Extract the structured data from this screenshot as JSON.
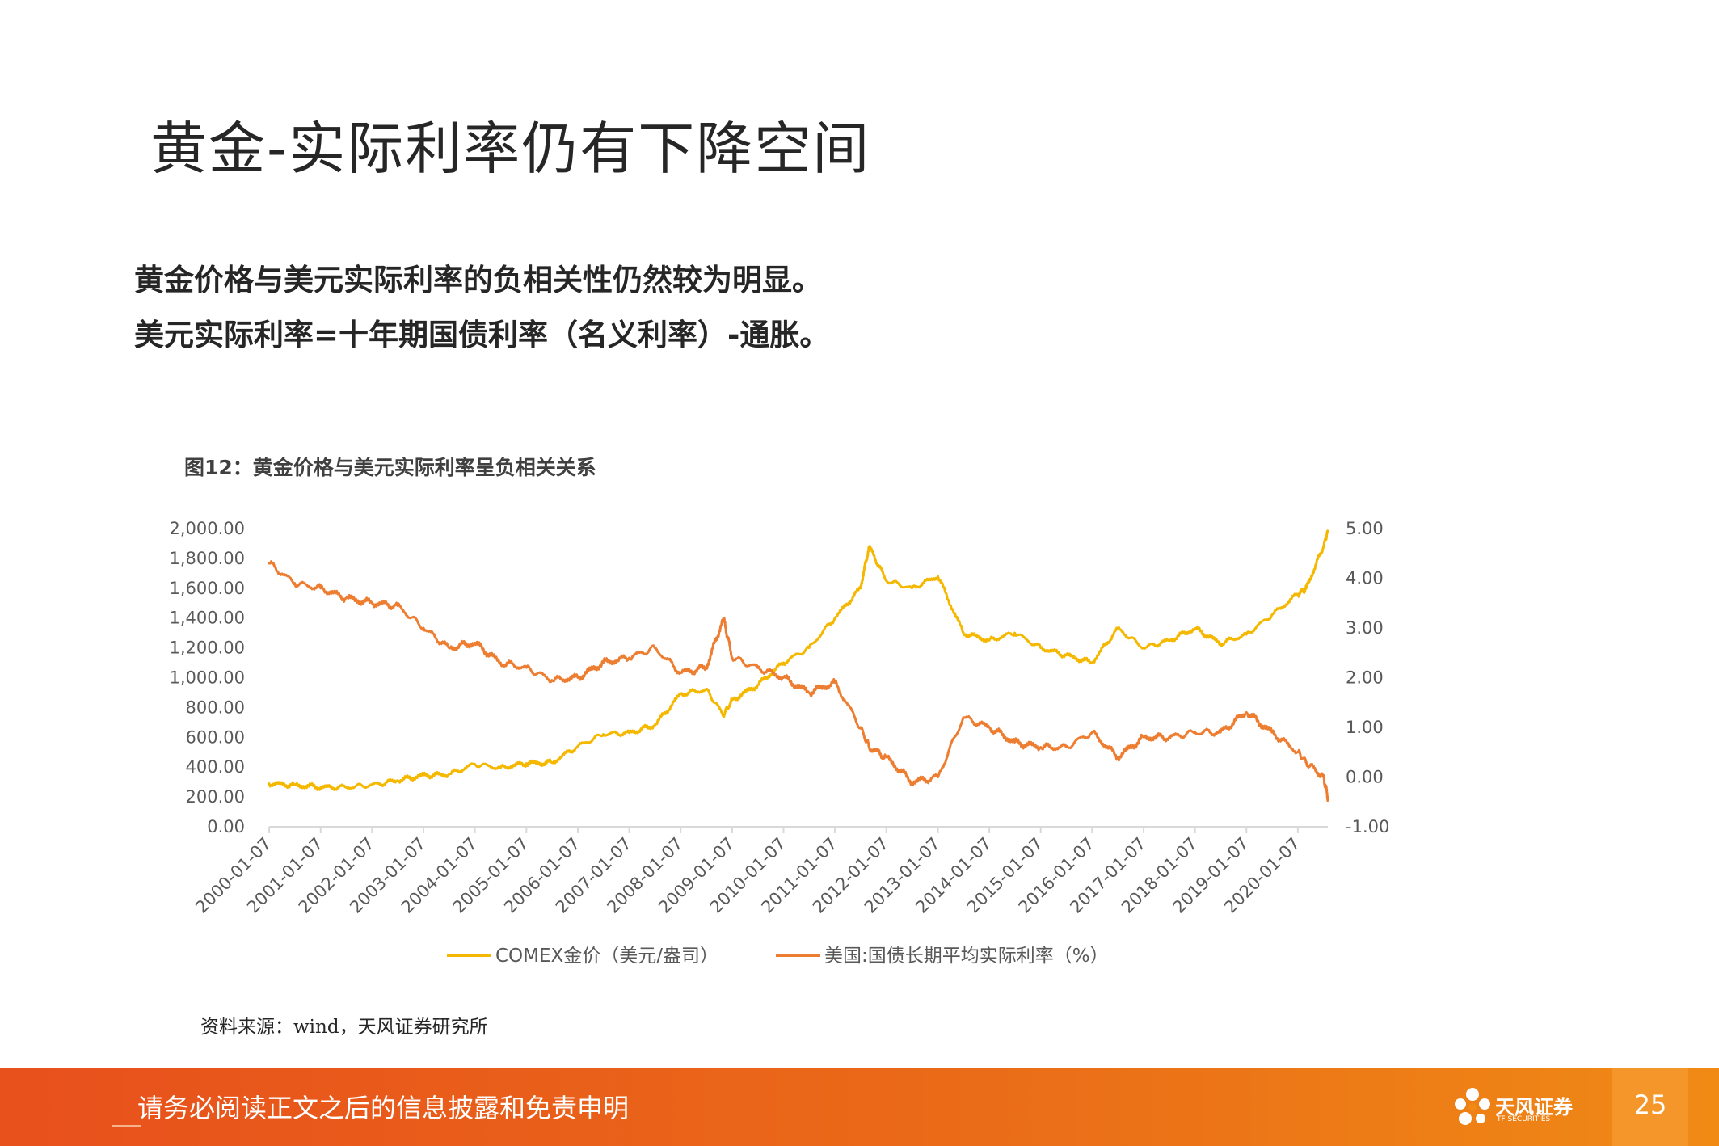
{
  "slide": {
    "title": "黄金-实际利率仍有下降空间",
    "points": [
      "黄金价格与美元实际利率的负相关性仍然较为明显。",
      "美元实际利率=十年期国债利率（名义利率）-通胀。"
    ],
    "figure_title": "图12：黄金价格与美元实际利率呈负相关关系",
    "source": "资料来源：wind，天风证券研究所"
  },
  "footer": {
    "disclaimer": "请务必阅读正文之后的信息披露和免责申明",
    "logo_text": "天风证券",
    "logo_subtext": "TF SECURITIES",
    "page_number": "25",
    "colors": {
      "bar": "#e8501c",
      "tab": "#f5962a"
    }
  },
  "chart_data": {
    "type": "line",
    "title": "",
    "x": [
      "2000-01-07",
      "2000-07-07",
      "2001-01-07",
      "2001-07-07",
      "2002-01-07",
      "2002-07-07",
      "2003-01-07",
      "2003-07-07",
      "2004-01-07",
      "2004-07-07",
      "2005-01-07",
      "2005-07-07",
      "2006-01-07",
      "2006-07-07",
      "2007-01-07",
      "2007-07-07",
      "2008-01-07",
      "2008-07-07",
      "2008-11-07",
      "2009-01-07",
      "2009-07-07",
      "2010-01-07",
      "2010-07-07",
      "2011-01-07",
      "2011-07-07",
      "2011-09-07",
      "2012-01-07",
      "2012-07-07",
      "2013-01-07",
      "2013-07-07",
      "2014-01-07",
      "2014-07-07",
      "2015-01-07",
      "2015-07-07",
      "2016-01-07",
      "2016-07-07",
      "2017-01-07",
      "2017-07-07",
      "2018-01-07",
      "2018-07-07",
      "2019-01-07",
      "2019-07-07",
      "2020-01-07",
      "2020-03-07",
      "2020-07-07",
      "2020-08-07"
    ],
    "x_ticks": [
      "2000-01-07",
      "2001-01-07",
      "2002-01-07",
      "2003-01-07",
      "2004-01-07",
      "2005-01-07",
      "2006-01-07",
      "2007-01-07",
      "2008-01-07",
      "2009-01-07",
      "2010-01-07",
      "2011-01-07",
      "2012-01-07",
      "2013-01-07",
      "2014-01-07",
      "2015-01-07",
      "2016-01-07",
      "2017-01-07",
      "2018-01-07",
      "2019-01-07",
      "2020-01-07"
    ],
    "y_left": {
      "ylim": [
        0,
        2000
      ],
      "ticks": [
        "0.00",
        "200.00",
        "400.00",
        "600.00",
        "800.00",
        "1,000.00",
        "1,200.00",
        "1,400.00",
        "1,600.00",
        "1,800.00",
        "2,000.00"
      ]
    },
    "y_right": {
      "ylim": [
        -1,
        5
      ],
      "ticks": [
        "-1.00",
        "0.00",
        "1.00",
        "2.00",
        "3.00",
        "4.00",
        "5.00"
      ]
    },
    "series": [
      {
        "name": "COMEX金价（美元/盎司）",
        "axis": "left",
        "color": "#f5b800",
        "values": [
          290,
          280,
          265,
          265,
          280,
          310,
          345,
          350,
          420,
          395,
          425,
          430,
          540,
          620,
          630,
          680,
          890,
          920,
          750,
          850,
          950,
          1100,
          1200,
          1400,
          1600,
          1880,
          1650,
          1600,
          1680,
          1300,
          1250,
          1300,
          1200,
          1150,
          1100,
          1330,
          1200,
          1250,
          1330,
          1230,
          1290,
          1420,
          1560,
          1600,
          1880,
          1980
        ]
      },
      {
        "name": "美国:国债长期平均实际利率（%）",
        "axis": "right",
        "color": "#ed7d31",
        "values": [
          4.3,
          3.9,
          3.8,
          3.6,
          3.5,
          3.45,
          3.0,
          2.6,
          2.7,
          2.3,
          2.2,
          1.95,
          2.0,
          2.3,
          2.4,
          2.6,
          2.1,
          2.2,
          3.2,
          2.4,
          2.2,
          2.0,
          1.7,
          1.9,
          1.0,
          0.6,
          0.4,
          -0.1,
          0.0,
          1.2,
          1.0,
          0.7,
          0.6,
          0.6,
          0.9,
          0.4,
          0.8,
          0.8,
          0.9,
          0.9,
          1.3,
          0.9,
          0.5,
          0.3,
          0.0,
          -0.4
        ]
      }
    ],
    "legend_position": "bottom",
    "grid": false
  }
}
